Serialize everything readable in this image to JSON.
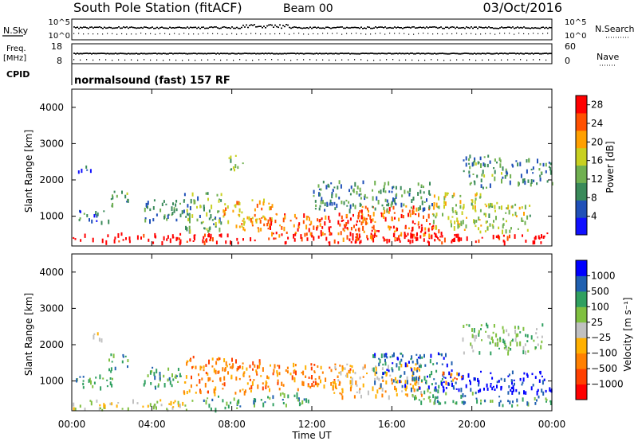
{
  "header": {
    "station": "South Pole Station (fitACF)",
    "beam": "Beam 00",
    "date": "03/Oct/2016"
  },
  "noise_panel": {
    "left_label": "N.Sky",
    "right_label": "N.Search",
    "left_ticks": [
      "10^5",
      "10^0"
    ],
    "right_ticks": [
      "10^5",
      "10^0"
    ]
  },
  "freq_panel": {
    "left_label_line1": "Freq.",
    "left_label_line2": "[MHz]",
    "right_label": "Nave",
    "left_ticks": [
      "18",
      "8"
    ],
    "right_ticks": [
      "60",
      "0"
    ]
  },
  "cpid": {
    "label": "CPID",
    "value": "normalsound (fast) 157 RF"
  },
  "colors": {
    "power_scale": [
      "#1010ff",
      "#2050b8",
      "#3a8a5a",
      "#70b050",
      "#c8d020",
      "#ffa000",
      "#ff5000",
      "#ff0000"
    ],
    "velocity_scale": [
      "#ff0000",
      "#ff4000",
      "#ff8000",
      "#ffb000",
      "#c0c0c0",
      "#80c040",
      "#30a060",
      "#2060b0",
      "#0000ff"
    ]
  },
  "chart_data": [
    {
      "type": "heatmap",
      "panel": "power",
      "ylabel": "Slant Range [km]",
      "y_ticks": [
        "1000",
        "2000",
        "3000",
        "4000"
      ],
      "ylim": [
        180,
        4500
      ],
      "xlim": [
        0,
        24
      ],
      "x_ticks": [
        "00:00",
        "04:00",
        "08:00",
        "12:00",
        "16:00",
        "20:00",
        "00:00"
      ],
      "xlabel": "Time UT",
      "colorbar": {
        "label": "Power [dB]",
        "ticks": [
          "4",
          "8",
          "12",
          "16",
          "20",
          "24",
          "28"
        ],
        "range": [
          0,
          30
        ]
      },
      "blobs": [
        {
          "t0": 0.0,
          "t1": 24.0,
          "r0": 300,
          "r1": 560,
          "level": 29
        },
        {
          "t0": 0.3,
          "t1": 2.0,
          "r0": 850,
          "r1": 1200,
          "level": 8
        },
        {
          "t0": 0.3,
          "t1": 1.2,
          "r0": 2250,
          "r1": 2450,
          "level": 5
        },
        {
          "t0": 1.8,
          "t1": 2.8,
          "r0": 1300,
          "r1": 1750,
          "level": 11
        },
        {
          "t0": 3.6,
          "t1": 6.0,
          "r0": 900,
          "r1": 1500,
          "level": 9
        },
        {
          "t0": 5.5,
          "t1": 7.5,
          "r0": 600,
          "r1": 1700,
          "level": 12
        },
        {
          "t0": 7.3,
          "t1": 10.0,
          "r0": 650,
          "r1": 1500,
          "level": 20
        },
        {
          "t0": 7.8,
          "t1": 8.6,
          "r0": 2250,
          "r1": 2750,
          "level": 14
        },
        {
          "t0": 9.5,
          "t1": 12.0,
          "r0": 500,
          "r1": 1100,
          "level": 24
        },
        {
          "t0": 12.0,
          "t1": 15.0,
          "r0": 380,
          "r1": 1100,
          "level": 26
        },
        {
          "t0": 14.0,
          "t1": 18.0,
          "r0": 400,
          "r1": 1300,
          "level": 24
        },
        {
          "t0": 16.0,
          "t1": 18.5,
          "r0": 350,
          "r1": 800,
          "level": 29
        },
        {
          "t0": 18.0,
          "t1": 20.5,
          "r0": 600,
          "r1": 1700,
          "level": 16
        },
        {
          "t0": 19.5,
          "t1": 21.5,
          "r0": 1800,
          "r1": 2700,
          "level": 11
        },
        {
          "t0": 20.5,
          "t1": 23.0,
          "r0": 600,
          "r1": 1400,
          "level": 15
        },
        {
          "t0": 21.5,
          "t1": 24.0,
          "r0": 1900,
          "r1": 2600,
          "level": 9
        },
        {
          "t0": 12.0,
          "t1": 18.0,
          "r0": 1200,
          "r1": 2000,
          "level": 10
        }
      ]
    },
    {
      "type": "heatmap",
      "panel": "velocity",
      "ylabel": "Slant Range [km]",
      "y_ticks": [
        "1000",
        "2000",
        "3000",
        "4000"
      ],
      "ylim": [
        180,
        4500
      ],
      "xlim": [
        0,
        24
      ],
      "x_ticks": [
        "00:00",
        "04:00",
        "08:00",
        "12:00",
        "16:00",
        "20:00",
        "00:00"
      ],
      "xlabel": "Time UT",
      "colorbar": {
        "label": "Velocity [m s⁻¹]",
        "ticks": [
          "1000",
          "500",
          "100",
          "25",
          "−25",
          "−100",
          "−500",
          "−1000"
        ]
      },
      "blobs": [
        {
          "t0": 0.0,
          "t1": 6.0,
          "r0": 220,
          "r1": 500,
          "level": 4
        },
        {
          "t0": 0.2,
          "t1": 2.0,
          "r0": 850,
          "r1": 1300,
          "level": 6
        },
        {
          "t0": 1.0,
          "t1": 1.6,
          "r0": 2100,
          "r1": 2400,
          "level": 4
        },
        {
          "t0": 1.8,
          "t1": 2.8,
          "r0": 1350,
          "r1": 1800,
          "level": 6
        },
        {
          "t0": 3.5,
          "t1": 5.5,
          "r0": 800,
          "r1": 1400,
          "level": 6
        },
        {
          "t0": 5.5,
          "t1": 9.5,
          "r0": 700,
          "r1": 1700,
          "level": 2
        },
        {
          "t0": 6.5,
          "t1": 8.5,
          "r0": 250,
          "r1": 600,
          "level": 6
        },
        {
          "t0": 9.0,
          "t1": 12.0,
          "r0": 350,
          "r1": 700,
          "level": 6
        },
        {
          "t0": 9.5,
          "t1": 14.0,
          "r0": 800,
          "r1": 1500,
          "level": 2
        },
        {
          "t0": 13.0,
          "t1": 17.5,
          "r0": 600,
          "r1": 1500,
          "level": 3
        },
        {
          "t0": 15.0,
          "t1": 19.0,
          "r0": 800,
          "r1": 1800,
          "level": 7
        },
        {
          "t0": 17.0,
          "t1": 20.5,
          "r0": 400,
          "r1": 800,
          "level": 6
        },
        {
          "t0": 18.5,
          "t1": 20.5,
          "r0": 700,
          "r1": 1300,
          "level": 8
        },
        {
          "t0": 20.5,
          "t1": 24.0,
          "r0": 700,
          "r1": 1300,
          "level": 8
        },
        {
          "t0": 20.0,
          "t1": 24.0,
          "r0": 350,
          "r1": 600,
          "level": 6
        },
        {
          "t0": 19.5,
          "t1": 23.5,
          "r0": 1800,
          "r1": 2600,
          "level": 5
        },
        {
          "t0": 18.5,
          "t1": 19.5,
          "r0": 950,
          "r1": 1300,
          "level": 2
        }
      ]
    }
  ]
}
